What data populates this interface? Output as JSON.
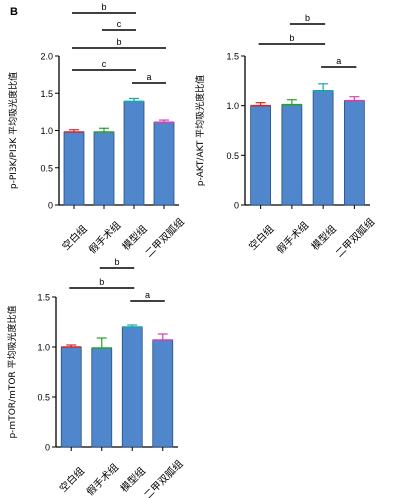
{
  "panel_label": "B",
  "colors": {
    "bar_fill": "#4f86cc",
    "bar_stroke": "#2b4f7c",
    "axis": "#000000",
    "err_green": "#2aa02a",
    "err_red": "#d62728",
    "err_magenta": "#d63fb0",
    "err_teal": "#18a6a6",
    "err_pink": "#e0489a"
  },
  "chart_data": [
    {
      "type": "bar",
      "title": "",
      "xlabel": "",
      "ylabel": "p-PI3K/PI3K 平均吸光度比值",
      "ylim": [
        0,
        2.0
      ],
      "yticks": [
        "0",
        "0.5",
        "1.0",
        "1.5",
        "2.0"
      ],
      "grid": false,
      "categories": [
        "空白组",
        "假手术组",
        "模型组",
        "二甲双胍组"
      ],
      "values": [
        0.98,
        0.98,
        1.39,
        1.11
      ],
      "errors": [
        0.03,
        0.05,
        0.04,
        0.03
      ],
      "error_colors": [
        "#d62728",
        "#2aa02a",
        "#18a6a6",
        "#d63fb0"
      ],
      "significance": [
        {
          "from": 0,
          "to": 2,
          "label": "b"
        },
        {
          "from": 1,
          "to": 2,
          "label": "c"
        },
        {
          "from": 0,
          "to": 3,
          "label": "b"
        },
        {
          "from": 0,
          "to": 2,
          "label": "c"
        },
        {
          "from": 2,
          "to": 3,
          "label": "a"
        }
      ]
    },
    {
      "type": "bar",
      "title": "",
      "xlabel": "",
      "ylabel": "p-AKT/AKT 平均吸光度比值",
      "ylim": [
        0,
        1.5
      ],
      "yticks": [
        "0",
        "0.5",
        "1.0",
        "1.5"
      ],
      "grid": false,
      "categories": [
        "空白组",
        "假手术组",
        "模型组",
        "二甲双胍组"
      ],
      "values": [
        1.0,
        1.01,
        1.15,
        1.05
      ],
      "errors": [
        0.03,
        0.05,
        0.07,
        0.04
      ],
      "error_colors": [
        "#d62728",
        "#2aa02a",
        "#18a6a6",
        "#d63fb0"
      ],
      "significance": [
        {
          "from": 1,
          "to": 2,
          "label": "b"
        },
        {
          "from": 0,
          "to": 2,
          "label": "b"
        },
        {
          "from": 2,
          "to": 3,
          "label": "a"
        }
      ]
    },
    {
      "type": "bar",
      "title": "",
      "xlabel": "",
      "ylabel": "p-mTOR/mTOR 平均吸光度比值",
      "ylim": [
        0,
        1.5
      ],
      "yticks": [
        "0",
        "0.5",
        "1.0",
        "1.5"
      ],
      "grid": false,
      "categories": [
        "空白组",
        "假手术组",
        "模型组",
        "二甲双胍组"
      ],
      "values": [
        1.0,
        0.99,
        1.2,
        1.07
      ],
      "errors": [
        0.02,
        0.1,
        0.02,
        0.06
      ],
      "error_colors": [
        "#d62728",
        "#2aa02a",
        "#18a6a6",
        "#d63fb0"
      ],
      "significance": [
        {
          "from": 1,
          "to": 2,
          "label": "b"
        },
        {
          "from": 0,
          "to": 2,
          "label": "b"
        },
        {
          "from": 2,
          "to": 3,
          "label": "a"
        }
      ]
    }
  ]
}
